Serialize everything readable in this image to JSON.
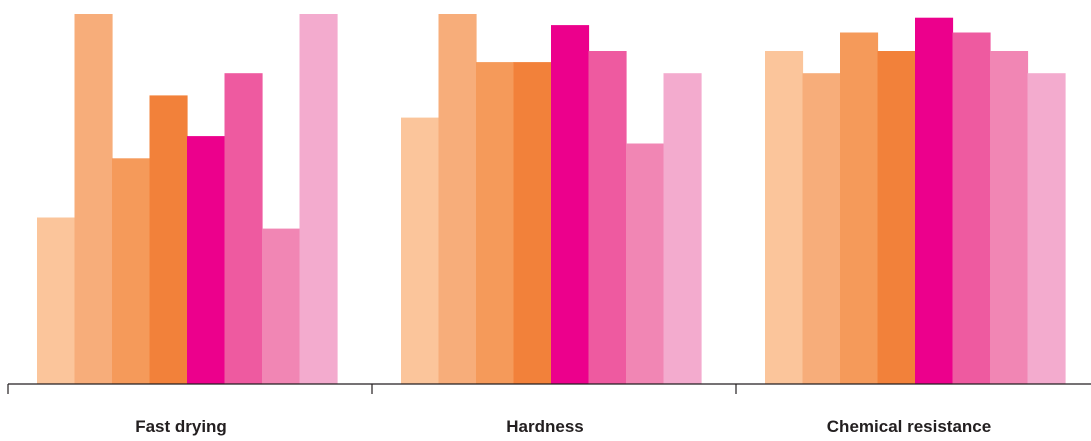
{
  "chart_data": {
    "type": "bar",
    "categories": [
      "Fast drying",
      "Hardness",
      "Chemical resistance"
    ],
    "series": [
      {
        "color": "#fbc59b",
        "values": [
          45,
          72,
          90
        ]
      },
      {
        "color": "#f7ad7a",
        "values": [
          100,
          100,
          84
        ]
      },
      {
        "color": "#f59a5a",
        "values": [
          61,
          87,
          95
        ]
      },
      {
        "color": "#f2813a",
        "values": [
          78,
          87,
          90
        ]
      },
      {
        "color": "#ec008c",
        "values": [
          67,
          97,
          99
        ]
      },
      {
        "color": "#ee5aa0",
        "values": [
          84,
          90,
          95
        ]
      },
      {
        "color": "#f186b4",
        "values": [
          42,
          65,
          90
        ]
      },
      {
        "color": "#f3abce",
        "values": [
          100,
          84,
          84
        ]
      }
    ],
    "title": "",
    "xlabel": "",
    "ylabel": "",
    "ylim": [
      0,
      100
    ],
    "grid": false,
    "show_y_axis": false
  }
}
